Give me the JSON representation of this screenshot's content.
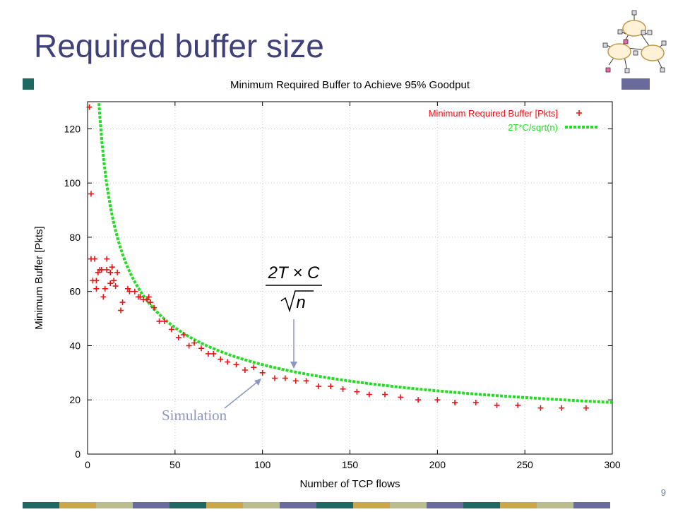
{
  "slide": {
    "title": "Required buffer size",
    "page_number": "9",
    "simulation_label": "Simulation",
    "formula": {
      "numerator": "2T × C",
      "denominator_radicand": "n"
    },
    "bar_colors": [
      "#1e6a63",
      "#c9a84a",
      "#bcbd8f",
      "#6a6a9c"
    ]
  },
  "chart_data": {
    "type": "scatter",
    "title": "Minimum Required Buffer to Achieve 95% Goodput",
    "xlabel": "Number of TCP flows",
    "ylabel": "Minimum Buffer [Pkts]",
    "xlim": [
      0,
      300
    ],
    "ylim": [
      0,
      130
    ],
    "xticks": [
      0,
      50,
      100,
      150,
      200,
      250,
      300
    ],
    "yticks": [
      0,
      20,
      40,
      60,
      80,
      100,
      120
    ],
    "grid": true,
    "legend_position": "top-right",
    "series": [
      {
        "name": "Minimum Required Buffer [Pkts]",
        "kind": "points",
        "color": "#ee1111",
        "points": [
          [
            1,
            128
          ],
          [
            2,
            96
          ],
          [
            2,
            72
          ],
          [
            4,
            72
          ],
          [
            3,
            64
          ],
          [
            5,
            64
          ],
          [
            5,
            61
          ],
          [
            6,
            67
          ],
          [
            7,
            68
          ],
          [
            8,
            68
          ],
          [
            9,
            58
          ],
          [
            10,
            61
          ],
          [
            11,
            72
          ],
          [
            11,
            68
          ],
          [
            13,
            63
          ],
          [
            13,
            67
          ],
          [
            14,
            69
          ],
          [
            15,
            64
          ],
          [
            16,
            62
          ],
          [
            17,
            67
          ],
          [
            19,
            53
          ],
          [
            20,
            56
          ],
          [
            23,
            61
          ],
          [
            24,
            60
          ],
          [
            27,
            60
          ],
          [
            29,
            58
          ],
          [
            30,
            58
          ],
          [
            32,
            57
          ],
          [
            34,
            57
          ],
          [
            35,
            58
          ],
          [
            36,
            56
          ],
          [
            38,
            54
          ],
          [
            41,
            49
          ],
          [
            44,
            49
          ],
          [
            48,
            46
          ],
          [
            52,
            43
          ],
          [
            55,
            44
          ],
          [
            58,
            40
          ],
          [
            61,
            41
          ],
          [
            65,
            39
          ],
          [
            69,
            37
          ],
          [
            72,
            37
          ],
          [
            76,
            35
          ],
          [
            80,
            34
          ],
          [
            85,
            33
          ],
          [
            90,
            31
          ],
          [
            95,
            32
          ],
          [
            100,
            30
          ],
          [
            107,
            28
          ],
          [
            113,
            28
          ],
          [
            119,
            27
          ],
          [
            125,
            27
          ],
          [
            132,
            25
          ],
          [
            139,
            25
          ],
          [
            146,
            24
          ],
          [
            154,
            23
          ],
          [
            161,
            22
          ],
          [
            170,
            22
          ],
          [
            179,
            21
          ],
          [
            189,
            20
          ],
          [
            200,
            20
          ],
          [
            210,
            19
          ],
          [
            222,
            19
          ],
          [
            234,
            18
          ],
          [
            246,
            18
          ],
          [
            259,
            17
          ],
          [
            271,
            17
          ],
          [
            285,
            17
          ]
        ]
      },
      {
        "name": "2T*C/sqrt(n)",
        "kind": "curve",
        "color": "#22dd22",
        "formula_constant": 330,
        "x_range": [
          6,
          300
        ]
      }
    ]
  }
}
